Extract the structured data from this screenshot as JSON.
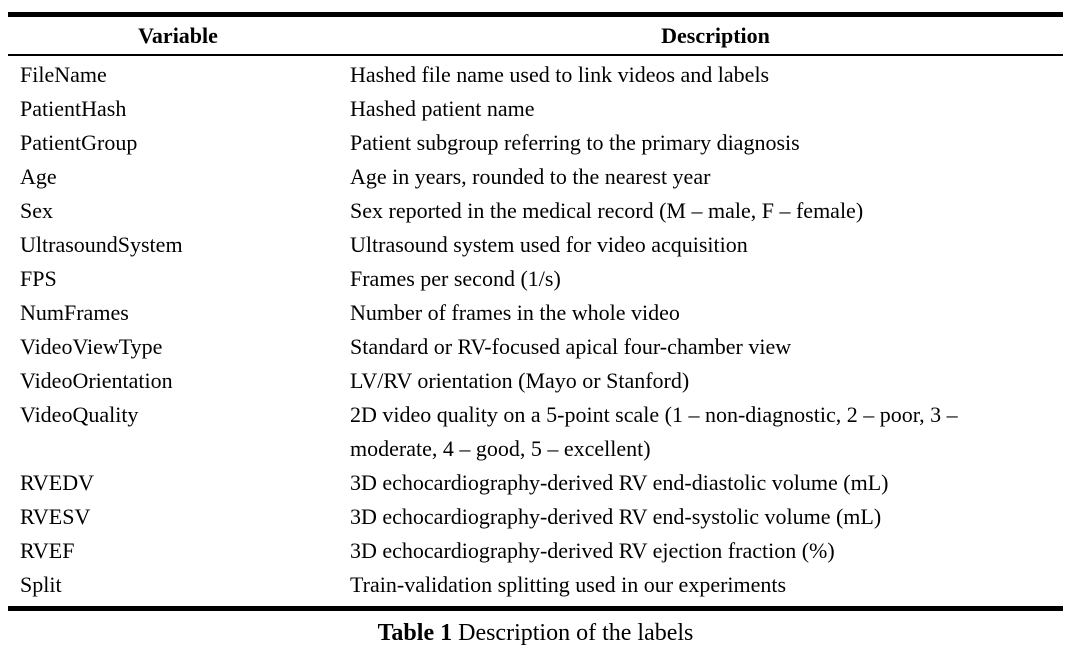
{
  "table": {
    "headers": {
      "variable": "Variable",
      "description": "Description"
    },
    "rows": [
      {
        "variable": "FileName",
        "description": "Hashed file name used to link videos and labels"
      },
      {
        "variable": "PatientHash",
        "description": "Hashed patient name"
      },
      {
        "variable": "PatientGroup",
        "description": "Patient subgroup referring to the primary diagnosis"
      },
      {
        "variable": "Age",
        "description": "Age in years, rounded to the nearest year"
      },
      {
        "variable": "Sex",
        "description": "Sex reported in the medical record (M – male, F – female)"
      },
      {
        "variable": "UltrasoundSystem",
        "description": "Ultrasound system used for video acquisition"
      },
      {
        "variable": "FPS",
        "description": "Frames per second (1/s)"
      },
      {
        "variable": "NumFrames",
        "description": "Number of frames in the whole video"
      },
      {
        "variable": "VideoViewType",
        "description": "Standard or RV-focused apical four-chamber view"
      },
      {
        "variable": "VideoOrientation",
        "description": "LV/RV orientation (Mayo or Stanford)"
      },
      {
        "variable": "VideoQuality",
        "description": "2D video quality on a 5-point scale (1 – non-diagnostic, 2 – poor, 3 – moderate, 4 – good, 5 – excellent)"
      },
      {
        "variable": "RVEDV",
        "description": "3D echocardiography-derived RV end-diastolic volume (mL)"
      },
      {
        "variable": "RVESV",
        "description": "3D echocardiography-derived RV end-systolic volume (mL)"
      },
      {
        "variable": "RVEF",
        "description": "3D echocardiography-derived RV ejection fraction (%)"
      },
      {
        "variable": "Split",
        "description": "Train-validation splitting used in our experiments"
      }
    ]
  },
  "caption": {
    "label": "Table 1",
    "text": " Description of the labels"
  }
}
